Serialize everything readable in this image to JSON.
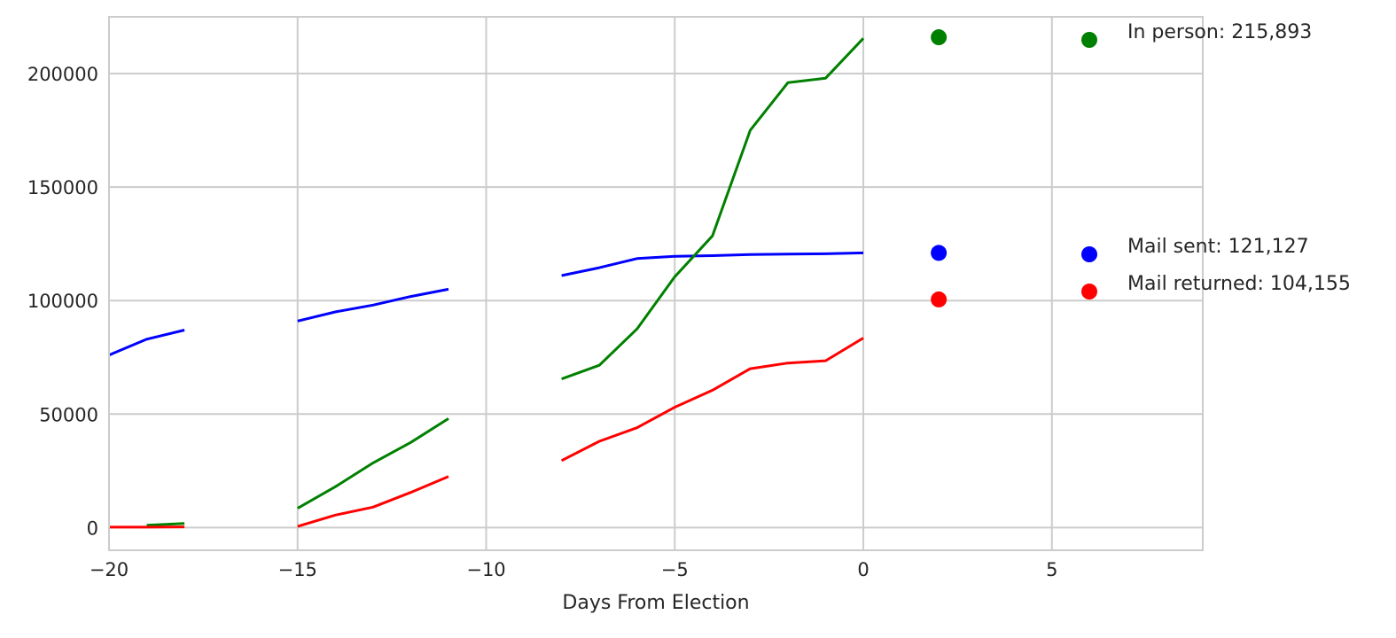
{
  "chart_data": {
    "type": "line",
    "title": "",
    "xlabel": "Days From Election",
    "ylabel": "",
    "xlim": [
      -20,
      9
    ],
    "ylim": [
      -10000,
      225000
    ],
    "xticks": [
      -20,
      -15,
      -10,
      -5,
      0,
      5
    ],
    "xtick_labels": [
      "−20",
      "−15",
      "−10",
      "−5",
      "0",
      "5"
    ],
    "yticks": [
      0,
      50000,
      100000,
      150000,
      200000
    ],
    "ytick_labels": [
      "0",
      "50000",
      "100000",
      "150000",
      "200000"
    ],
    "grid": true,
    "series": [
      {
        "key": "mail_sent",
        "color": "#0000ff",
        "segments": [
          [
            [
              -20,
              76000
            ],
            [
              -19,
              83000
            ],
            [
              -18,
              87000
            ]
          ],
          [
            [
              -15,
              91000
            ],
            [
              -14,
              95000
            ],
            [
              -13,
              98000
            ],
            [
              -12,
              101800
            ],
            [
              -11,
              105000
            ]
          ],
          [
            [
              -8,
              111000
            ],
            [
              -7,
              114500
            ],
            [
              -6,
              118500
            ],
            [
              -5,
              119500
            ],
            [
              -4,
              119800
            ],
            [
              -3,
              120300
            ],
            [
              -2,
              120500
            ],
            [
              -1,
              120600
            ],
            [
              0,
              121000
            ]
          ]
        ]
      },
      {
        "key": "in_person",
        "color": "#008000",
        "segments": [
          [
            [
              -19,
              1000
            ],
            [
              -18,
              1800
            ]
          ],
          [
            [
              -15,
              8500
            ],
            [
              -14,
              18000
            ],
            [
              -13,
              28500
            ],
            [
              -12,
              37500
            ],
            [
              -11,
              48000
            ]
          ],
          [
            [
              -8,
              65500
            ],
            [
              -7,
              71500
            ],
            [
              -6,
              87500
            ],
            [
              -5,
              110500
            ],
            [
              -4,
              128500
            ],
            [
              -3,
              175000
            ],
            [
              -2,
              196000
            ],
            [
              -1,
              198000
            ],
            [
              0,
              215500
            ]
          ]
        ]
      },
      {
        "key": "mail_returned",
        "color": "#ff0000",
        "segments": [
          [
            [
              -20,
              200
            ],
            [
              -19,
              200
            ],
            [
              -18,
              300
            ]
          ],
          [
            [
              -15,
              500
            ],
            [
              -14,
              5500
            ],
            [
              -13,
              9000
            ],
            [
              -12,
              15500
            ],
            [
              -11,
              22500
            ]
          ],
          [
            [
              -8,
              29500
            ],
            [
              -7,
              38000
            ],
            [
              -6,
              44000
            ],
            [
              -5,
              53000
            ],
            [
              -4,
              60500
            ],
            [
              -3,
              70000
            ],
            [
              -2,
              72500
            ],
            [
              -1,
              73500
            ],
            [
              0,
              83500
            ]
          ]
        ]
      }
    ],
    "markers": [
      {
        "key": "in_person",
        "x": 2,
        "y": 216000,
        "color": "#008000"
      },
      {
        "key": "mail_sent",
        "x": 2,
        "y": 121000,
        "color": "#0000ff"
      },
      {
        "key": "mail_returned",
        "x": 2,
        "y": 100500,
        "color": "#ff0000"
      }
    ],
    "legend": {
      "position": "right",
      "entries": [
        {
          "key": "in_person",
          "label": "In person: 215,893",
          "color": "#008000"
        },
        {
          "key": "mail_sent",
          "label": "Mail sent: 121,127",
          "color": "#0000ff"
        },
        {
          "key": "mail_returned",
          "label": "Mail returned: 104,155",
          "color": "#ff0000"
        }
      ]
    }
  }
}
